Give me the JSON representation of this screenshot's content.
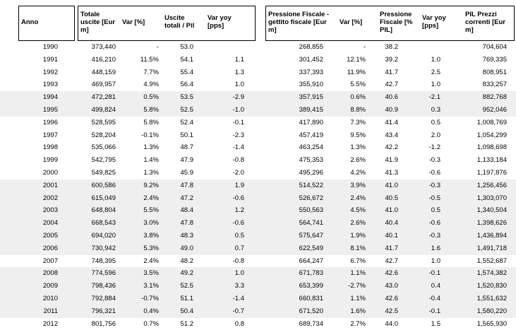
{
  "headers": {
    "anno": "Anno",
    "totale_uscite": "Totale\nuscite [Eur\nm]",
    "var_pct_1": "Var [%]",
    "uscite_pil": "Uscite\ntotali / Pil",
    "var_yoy_1": "Var yoy\n[pps]",
    "pressione": "Pressione Fiscale -\ngettito fiscale [Eur\nm]",
    "var_pct_2": "Var [%]",
    "pressione_pil": "Pressione\nFiscale [%\nPIL]",
    "var_yoy_2": "Var yoy\n[pps]",
    "pil": "PIL Prezzi\ncorrenti [Eur\nm]"
  },
  "rows": [
    {
      "year": "1990",
      "uscite": "373,440",
      "var1": "-",
      "uscite_pil": "53.0",
      "yoy1": "",
      "gettito": "268,855",
      "var2": "-",
      "press_pil": "38.2",
      "yoy2": "",
      "pil": "704,604"
    },
    {
      "year": "1991",
      "uscite": "416,210",
      "var1": "11.5%",
      "uscite_pil": "54.1",
      "yoy1": "1.1",
      "gettito": "301,452",
      "var2": "12.1%",
      "press_pil": "39.2",
      "yoy2": "1.0",
      "pil": "769,335"
    },
    {
      "year": "1992",
      "uscite": "448,159",
      "var1": "7.7%",
      "uscite_pil": "55.4",
      "yoy1": "1.3",
      "gettito": "337,393",
      "var2": "11.9%",
      "press_pil": "41.7",
      "yoy2": "2.5",
      "pil": "808,951"
    },
    {
      "year": "1993",
      "uscite": "469,957",
      "var1": "4.9%",
      "uscite_pil": "56.4",
      "yoy1": "1.0",
      "gettito": "355,910",
      "var2": "5.5%",
      "press_pil": "42.7",
      "yoy2": "1.0",
      "pil": "833,257"
    },
    {
      "year": "1994",
      "uscite": "472,281",
      "var1": "0.5%",
      "uscite_pil": "53.5",
      "yoy1": "-2.9",
      "gettito": "357,915",
      "var2": "0.6%",
      "press_pil": "40.6",
      "yoy2": "-2.1",
      "pil": "882,768"
    },
    {
      "year": "1995",
      "uscite": "499,824",
      "var1": "5.8%",
      "uscite_pil": "52.5",
      "yoy1": "-1.0",
      "gettito": "389,415",
      "var2": "8.8%",
      "press_pil": "40.9",
      "yoy2": "0.3",
      "pil": "952,046"
    },
    {
      "year": "1996",
      "uscite": "528,595",
      "var1": "5.8%",
      "uscite_pil": "52.4",
      "yoy1": "-0.1",
      "gettito": "417,890",
      "var2": "7.3%",
      "press_pil": "41.4",
      "yoy2": "0.5",
      "pil": "1,008,769"
    },
    {
      "year": "1997",
      "uscite": "528,204",
      "var1": "-0.1%",
      "uscite_pil": "50.1",
      "yoy1": "-2.3",
      "gettito": "457,419",
      "var2": "9.5%",
      "press_pil": "43.4",
      "yoy2": "2.0",
      "pil": "1,054,299"
    },
    {
      "year": "1998",
      "uscite": "535,066",
      "var1": "1.3%",
      "uscite_pil": "48.7",
      "yoy1": "-1.4",
      "gettito": "463,254",
      "var2": "1.3%",
      "press_pil": "42.2",
      "yoy2": "-1.2",
      "pil": "1,098,698"
    },
    {
      "year": "1999",
      "uscite": "542,795",
      "var1": "1.4%",
      "uscite_pil": "47.9",
      "yoy1": "-0.8",
      "gettito": "475,353",
      "var2": "2.6%",
      "press_pil": "41.9",
      "yoy2": "-0.3",
      "pil": "1,133,184"
    },
    {
      "year": "2000",
      "uscite": "549,825",
      "var1": "1.3%",
      "uscite_pil": "45.9",
      "yoy1": "-2.0",
      "gettito": "495,296",
      "var2": "4.2%",
      "press_pil": "41.3",
      "yoy2": "-0.6",
      "pil": "1,197,876"
    },
    {
      "year": "2001",
      "uscite": "600,586",
      "var1": "9.2%",
      "uscite_pil": "47.8",
      "yoy1": "1.9",
      "gettito": "514,522",
      "var2": "3.9%",
      "press_pil": "41.0",
      "yoy2": "-0.3",
      "pil": "1,256,456"
    },
    {
      "year": "2002",
      "uscite": "615,049",
      "var1": "2.4%",
      "uscite_pil": "47.2",
      "yoy1": "-0.6",
      "gettito": "526,672",
      "var2": "2.4%",
      "press_pil": "40.5",
      "yoy2": "-0.5",
      "pil": "1,303,070"
    },
    {
      "year": "2003",
      "uscite": "648,804",
      "var1": "5.5%",
      "uscite_pil": "48.4",
      "yoy1": "1.2",
      "gettito": "550,563",
      "var2": "4.5%",
      "press_pil": "41.0",
      "yoy2": "0.5",
      "pil": "1,340,504"
    },
    {
      "year": "2004",
      "uscite": "668,543",
      "var1": "3.0%",
      "uscite_pil": "47.8",
      "yoy1": "-0.6",
      "gettito": "564,741",
      "var2": "2.6%",
      "press_pil": "40.4",
      "yoy2": "-0.6",
      "pil": "1,398,626"
    },
    {
      "year": "2005",
      "uscite": "694,020",
      "var1": "3.8%",
      "uscite_pil": "48.3",
      "yoy1": "0.5",
      "gettito": "575,647",
      "var2": "1.9%",
      "press_pil": "40.1",
      "yoy2": "-0.3",
      "pil": "1,436,894"
    },
    {
      "year": "2006",
      "uscite": "730,942",
      "var1": "5.3%",
      "uscite_pil": "49.0",
      "yoy1": "0.7",
      "gettito": "622,549",
      "var2": "8.1%",
      "press_pil": "41.7",
      "yoy2": "1.6",
      "pil": "1,491,718"
    },
    {
      "year": "2007",
      "uscite": "748,395",
      "var1": "2.4%",
      "uscite_pil": "48.2",
      "yoy1": "-0.8",
      "gettito": "664,247",
      "var2": "6.7%",
      "press_pil": "42.7",
      "yoy2": "1.0",
      "pil": "1,552,687"
    },
    {
      "year": "2008",
      "uscite": "774,596",
      "var1": "3.5%",
      "uscite_pil": "49.2",
      "yoy1": "1.0",
      "gettito": "671,783",
      "var2": "1.1%",
      "press_pil": "42.6",
      "yoy2": "-0.1",
      "pil": "1,574,382"
    },
    {
      "year": "2009",
      "uscite": "798,436",
      "var1": "3.1%",
      "uscite_pil": "52.5",
      "yoy1": "3.3",
      "gettito": "653,399",
      "var2": "-2.7%",
      "press_pil": "43.0",
      "yoy2": "0.4",
      "pil": "1,520,830"
    },
    {
      "year": "2010",
      "uscite": "792,884",
      "var1": "-0.7%",
      "uscite_pil": "51.1",
      "yoy1": "-1.4",
      "gettito": "660,831",
      "var2": "1.1%",
      "press_pil": "42.6",
      "yoy2": "-0.4",
      "pil": "1,551,632"
    },
    {
      "year": "2011",
      "uscite": "796,321",
      "var1": "0.4%",
      "uscite_pil": "50.4",
      "yoy1": "-0.7",
      "gettito": "671,520",
      "var2": "1.6%",
      "press_pil": "42.5",
      "yoy2": "-0.1",
      "pil": "1,580,220"
    },
    {
      "year": "2012",
      "uscite": "801,756",
      "var1": "0.7%",
      "uscite_pil": "51.2",
      "yoy1": "0.8",
      "gettito": "689,734",
      "var2": "2.7%",
      "press_pil": "44.0",
      "yoy2": "1.5",
      "pil": "1,565,930"
    }
  ]
}
